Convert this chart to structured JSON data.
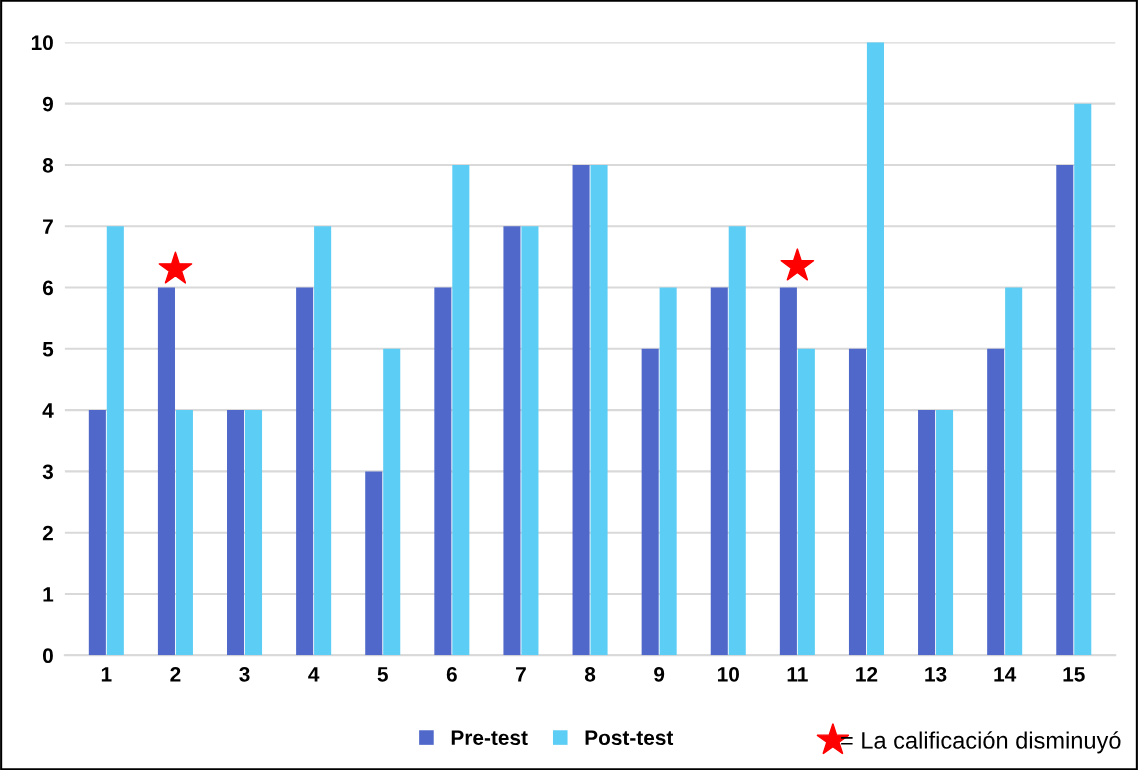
{
  "chart_data": {
    "type": "bar",
    "categories": [
      "1",
      "2",
      "3",
      "4",
      "5",
      "6",
      "7",
      "8",
      "9",
      "10",
      "11",
      "12",
      "13",
      "14",
      "15"
    ],
    "series": [
      {
        "name": "Pre-test",
        "color": "#4f68c9",
        "values": [
          4,
          6,
          4,
          6,
          3,
          6,
          7,
          8,
          5,
          6,
          6,
          5,
          4,
          5,
          8
        ]
      },
      {
        "name": "Post-test",
        "color": "#5ccdf4",
        "values": [
          7,
          4,
          4,
          7,
          5,
          8,
          7,
          8,
          6,
          7,
          5,
          10,
          4,
          6,
          9
        ]
      },
      {
        "name": "= La calificación disminuyó",
        "type": "scatter",
        "marker": "star",
        "color": "#ff0000",
        "x": [
          "2",
          "11"
        ],
        "values": [
          6.3,
          6.35
        ]
      }
    ],
    "ylim": [
      0,
      10
    ],
    "yticks": [
      0,
      1,
      2,
      3,
      4,
      5,
      6,
      7,
      8,
      9,
      10
    ],
    "grid": "y",
    "legend": "bottom"
  }
}
